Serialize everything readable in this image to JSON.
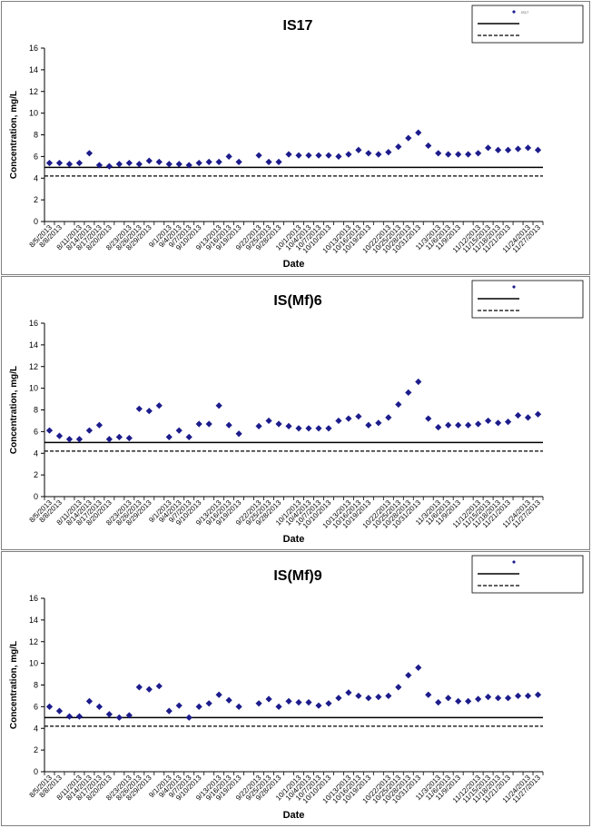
{
  "charts": [
    {
      "type": "scatter",
      "title": "IS17",
      "xlabel": "Date",
      "ylabel": "Concentration, mg/L",
      "ylim": [
        0,
        16
      ],
      "yticks": [
        0,
        2,
        4,
        6,
        8,
        10,
        12,
        14,
        16
      ],
      "xticks": [
        "8/5/2013",
        "8/8/2013",
        "8/11/2013",
        "8/14/2013",
        "8/17/2013",
        "8/20/2013",
        "8/23/2013",
        "8/26/2013",
        "8/29/2013",
        "9/1/2013",
        "9/4/2013",
        "9/7/2013",
        "9/10/2013",
        "9/13/2013",
        "9/16/2013",
        "9/19/2013",
        "9/22/2013",
        "9/25/2013",
        "9/28/2013",
        "10/1/2013",
        "10/4/2013",
        "10/7/2013",
        "10/10/2013",
        "10/13/2013",
        "10/16/2013",
        "10/19/2013",
        "10/22/2013",
        "10/25/2013",
        "10/28/2013",
        "10/31/2013",
        "11/3/2013",
        "11/6/2013",
        "11/9/2013",
        "11/12/2013",
        "11/15/2013",
        "11/18/2013",
        "11/21/2013",
        "11/24/2013",
        "11/27/2013"
      ],
      "hlines": [
        {
          "y": 5.0,
          "style": "solid"
        },
        {
          "y": 4.2,
          "style": "dashed"
        }
      ],
      "legend_position": "top-right",
      "legend_labels": [
        "IS17",
        "",
        ""
      ],
      "points": [
        [
          0,
          5.4
        ],
        [
          1,
          5.4
        ],
        [
          2,
          5.3
        ],
        [
          3,
          5.4
        ],
        [
          4,
          6.3
        ],
        [
          5,
          5.2
        ],
        [
          6,
          5.1
        ],
        [
          7,
          5.3
        ],
        [
          8,
          5.4
        ],
        [
          9,
          5.3
        ],
        [
          10,
          5.6
        ],
        [
          11,
          5.5
        ],
        [
          12,
          5.3
        ],
        [
          13,
          5.3
        ],
        [
          14,
          5.2
        ],
        [
          15,
          5.4
        ],
        [
          16,
          5.5
        ],
        [
          17,
          5.5
        ],
        [
          18,
          6.0
        ],
        [
          19,
          5.5
        ],
        [
          21,
          6.1
        ],
        [
          22,
          5.5
        ],
        [
          23,
          5.5
        ],
        [
          24,
          6.2
        ],
        [
          25,
          6.1
        ],
        [
          26,
          6.1
        ],
        [
          27,
          6.1
        ],
        [
          28,
          6.1
        ],
        [
          29,
          6.0
        ],
        [
          30,
          6.2
        ],
        [
          31,
          6.6
        ],
        [
          32,
          6.3
        ],
        [
          33,
          6.2
        ],
        [
          34,
          6.4
        ],
        [
          35,
          6.9
        ],
        [
          36,
          7.7
        ],
        [
          37,
          8.2
        ],
        [
          38,
          7.0
        ],
        [
          39,
          6.3
        ],
        [
          40,
          6.2
        ],
        [
          41,
          6.2
        ],
        [
          42,
          6.2
        ],
        [
          43,
          6.3
        ],
        [
          44,
          6.8
        ],
        [
          45,
          6.6
        ],
        [
          46,
          6.6
        ],
        [
          47,
          6.7
        ],
        [
          48,
          6.8
        ],
        [
          49,
          6.6
        ]
      ]
    },
    {
      "type": "scatter",
      "title": "IS(Mf)6",
      "xlabel": "Date",
      "ylabel": "Concentration, mg/L",
      "ylim": [
        0,
        16
      ],
      "yticks": [
        0,
        2,
        4,
        6,
        8,
        10,
        12,
        14,
        16
      ],
      "xticks": [
        "8/5/2013",
        "8/8/2013",
        "8/11/2013",
        "8/14/2013",
        "8/17/2013",
        "8/20/2013",
        "8/23/2013",
        "8/26/2013",
        "8/29/2013",
        "9/1/2013",
        "9/4/2013",
        "9/7/2013",
        "9/10/2013",
        "9/13/2013",
        "9/16/2013",
        "9/19/2013",
        "9/22/2013",
        "9/25/2013",
        "9/28/2013",
        "10/1/2013",
        "10/4/2013",
        "10/7/2013",
        "10/10/2013",
        "10/13/2013",
        "10/16/2013",
        "10/19/2013",
        "10/22/2013",
        "10/25/2013",
        "10/28/2013",
        "10/31/2013",
        "11/3/2013",
        "11/6/2013",
        "11/9/2013",
        "11/12/2013",
        "11/15/2013",
        "11/18/2013",
        "11/21/2013",
        "11/24/2013",
        "11/27/2013"
      ],
      "hlines": [
        {
          "y": 5.0,
          "style": "solid"
        },
        {
          "y": 4.2,
          "style": "dashed"
        }
      ],
      "legend_position": "top-right",
      "legend_labels": [
        "",
        "",
        ""
      ],
      "points": [
        [
          0,
          6.1
        ],
        [
          1,
          5.6
        ],
        [
          2,
          5.3
        ],
        [
          3,
          5.3
        ],
        [
          4,
          6.1
        ],
        [
          5,
          6.6
        ],
        [
          6,
          5.3
        ],
        [
          7,
          5.5
        ],
        [
          8,
          5.4
        ],
        [
          9,
          8.1
        ],
        [
          10,
          7.9
        ],
        [
          11,
          8.4
        ],
        [
          12,
          5.5
        ],
        [
          13,
          6.1
        ],
        [
          14,
          5.5
        ],
        [
          15,
          6.7
        ],
        [
          16,
          6.7
        ],
        [
          17,
          8.4
        ],
        [
          18,
          6.6
        ],
        [
          19,
          5.8
        ],
        [
          21,
          6.5
        ],
        [
          22,
          7.0
        ],
        [
          23,
          6.7
        ],
        [
          24,
          6.5
        ],
        [
          25,
          6.3
        ],
        [
          26,
          6.3
        ],
        [
          27,
          6.3
        ],
        [
          28,
          6.3
        ],
        [
          29,
          7.0
        ],
        [
          30,
          7.2
        ],
        [
          31,
          7.4
        ],
        [
          32,
          6.6
        ],
        [
          33,
          6.8
        ],
        [
          34,
          7.3
        ],
        [
          35,
          8.5
        ],
        [
          36,
          9.6
        ],
        [
          37,
          10.6
        ],
        [
          38,
          7.2
        ],
        [
          39,
          6.4
        ],
        [
          40,
          6.6
        ],
        [
          41,
          6.6
        ],
        [
          42,
          6.6
        ],
        [
          43,
          6.7
        ],
        [
          44,
          7.0
        ],
        [
          45,
          6.8
        ],
        [
          46,
          6.9
        ],
        [
          47,
          7.5
        ],
        [
          48,
          7.3
        ],
        [
          49,
          7.6
        ]
      ]
    },
    {
      "type": "scatter",
      "title": "IS(Mf)9",
      "xlabel": "Date",
      "ylabel": "Concentration, mg/L",
      "ylim": [
        0,
        16
      ],
      "yticks": [
        0,
        2,
        4,
        6,
        8,
        10,
        12,
        14,
        16
      ],
      "xticks": [
        "8/5/2013",
        "8/8/2013",
        "8/11/2013",
        "8/14/2013",
        "8/17/2013",
        "8/20/2013",
        "8/23/2013",
        "8/26/2013",
        "8/29/2013",
        "9/1/2013",
        "9/4/2013",
        "9/7/2013",
        "9/10/2013",
        "9/13/2013",
        "9/16/2013",
        "9/19/2013",
        "9/22/2013",
        "9/25/2013",
        "9/28/2013",
        "10/1/2013",
        "10/4/2013",
        "10/7/2013",
        "10/10/2013",
        "10/13/2013",
        "10/16/2013",
        "10/19/2013",
        "10/22/2013",
        "10/25/2013",
        "10/28/2013",
        "10/31/2013",
        "11/3/2013",
        "11/6/2013",
        "11/9/2013",
        "11/12/2013",
        "11/15/2013",
        "11/18/2013",
        "11/21/2013",
        "11/24/2013",
        "11/27/2013"
      ],
      "hlines": [
        {
          "y": 5.0,
          "style": "solid"
        },
        {
          "y": 4.2,
          "style": "dashed"
        }
      ],
      "legend_position": "top-right",
      "legend_labels": [
        "",
        "",
        ""
      ],
      "points": [
        [
          0,
          6.0
        ],
        [
          1,
          5.6
        ],
        [
          2,
          5.1
        ],
        [
          3,
          5.1
        ],
        [
          4,
          6.5
        ],
        [
          5,
          6.0
        ],
        [
          6,
          5.3
        ],
        [
          7,
          5.0
        ],
        [
          8,
          5.2
        ],
        [
          9,
          7.8
        ],
        [
          10,
          7.6
        ],
        [
          11,
          7.9
        ],
        [
          12,
          5.6
        ],
        [
          13,
          6.1
        ],
        [
          14,
          5.0
        ],
        [
          15,
          6.0
        ],
        [
          16,
          6.3
        ],
        [
          17,
          7.1
        ],
        [
          18,
          6.6
        ],
        [
          19,
          6.0
        ],
        [
          21,
          6.3
        ],
        [
          22,
          6.7
        ],
        [
          23,
          6.0
        ],
        [
          24,
          6.5
        ],
        [
          25,
          6.4
        ],
        [
          26,
          6.4
        ],
        [
          27,
          6.1
        ],
        [
          28,
          6.3
        ],
        [
          29,
          6.8
        ],
        [
          30,
          7.3
        ],
        [
          31,
          7.0
        ],
        [
          32,
          6.8
        ],
        [
          33,
          6.9
        ],
        [
          34,
          7.0
        ],
        [
          35,
          7.8
        ],
        [
          36,
          8.9
        ],
        [
          37,
          9.6
        ],
        [
          38,
          7.1
        ],
        [
          39,
          6.4
        ],
        [
          40,
          6.8
        ],
        [
          41,
          6.5
        ],
        [
          42,
          6.5
        ],
        [
          43,
          6.7
        ],
        [
          44,
          6.9
        ],
        [
          45,
          6.8
        ],
        [
          46,
          6.8
        ],
        [
          47,
          7.0
        ],
        [
          48,
          7.0
        ],
        [
          49,
          7.1
        ]
      ]
    }
  ],
  "colors": {
    "marker": "#1c1c8c",
    "line": "#000000",
    "panel_border": "#808080"
  }
}
